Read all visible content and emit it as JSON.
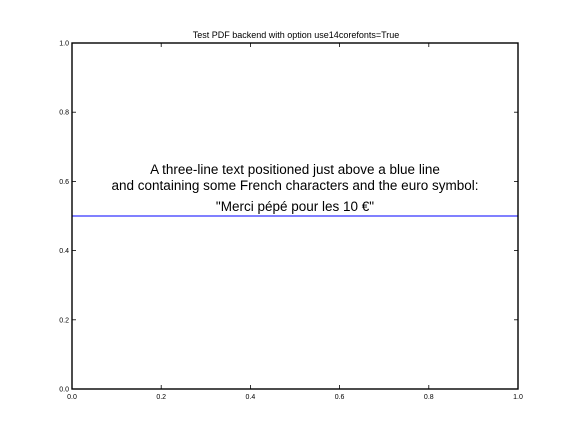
{
  "chart_data": {
    "type": "line",
    "title": "Test PDF backend with option use14corefonts=True",
    "xlabel": "",
    "ylabel": "",
    "xlim": [
      0,
      1
    ],
    "ylim": [
      0,
      1
    ],
    "x_ticks": [
      "0.0",
      "0.2",
      "0.4",
      "0.6",
      "0.8",
      "1.0"
    ],
    "y_ticks": [
      "0.0",
      "0.2",
      "0.4",
      "0.6",
      "0.8",
      "1.0"
    ],
    "grid": false,
    "series": [
      {
        "x": [
          0,
          1
        ],
        "y": [
          0.5,
          0.5
        ],
        "color": "#0000ff"
      }
    ],
    "annotation": {
      "lines": [
        "A three-line text positioned just above a blue line",
        "and containing some French characters and the euro symbol:",
        "\"Merci pépé pour les 10 €\""
      ],
      "x": 0.5,
      "y": 0.5
    }
  }
}
